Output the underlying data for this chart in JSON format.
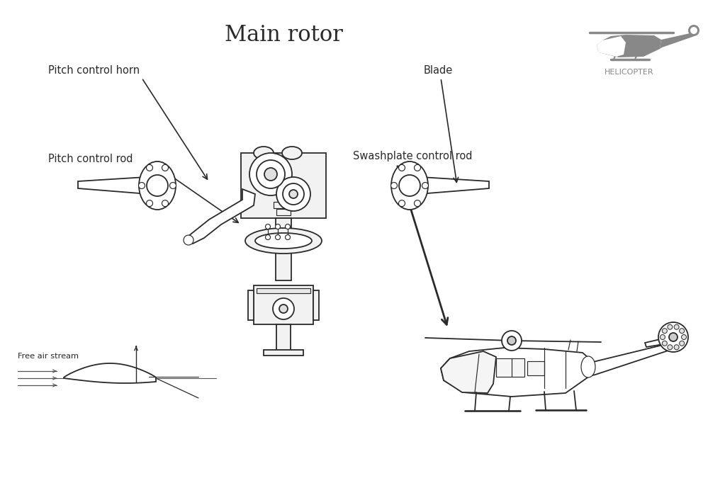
{
  "title": "Main rotor",
  "title_fontsize": 22,
  "title_font": "serif",
  "bg_color": "#ffffff",
  "lc": "#2a2a2a",
  "gray_color": "#888888",
  "helicopter_icon_color": "#888888",
  "label_fontsize": 10.5,
  "label_font": "sans-serif",
  "labels": {
    "pitch_control_horn": "Pitch control horn",
    "blade": "Blade",
    "pitch_control_rod": "Pitch control rod",
    "swashplate_control_rod": "Swashplate control rod",
    "free_air_stream": "Free air stream",
    "helicopter": "HELICOPTER"
  }
}
